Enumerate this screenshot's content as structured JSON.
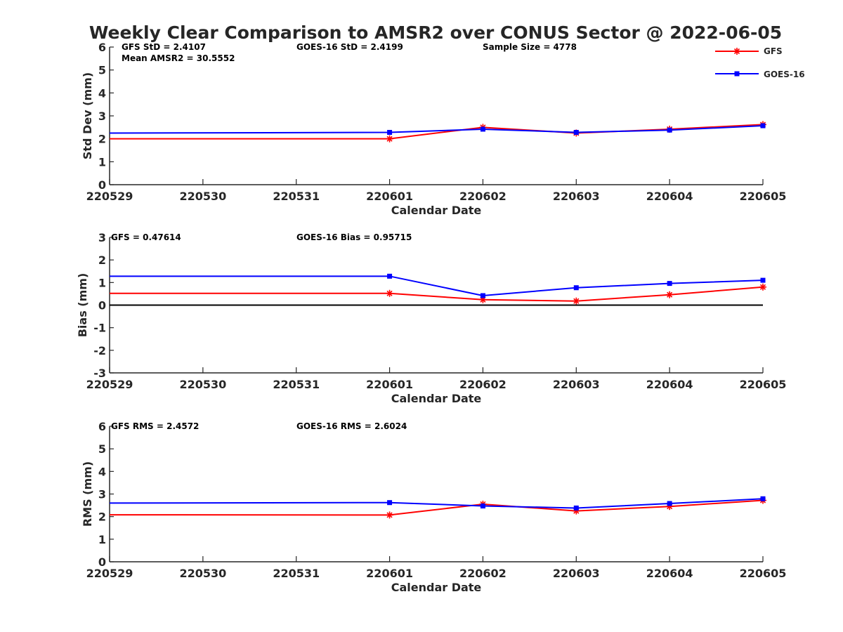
{
  "figure": {
    "title": "Weekly Clear Comparison to AMSR2 over CONUS Sector @ 2022-06-05"
  },
  "legend": {
    "placement": "top-right",
    "entries": [
      {
        "label": "GFS",
        "color": "#ff0000",
        "marker": "asterisk"
      },
      {
        "label": "GOES-16",
        "color": "#0000ff",
        "marker": "square"
      }
    ]
  },
  "chart_data": [
    {
      "type": "line",
      "ylabel": "Std Dev (mm)",
      "xlabel": "Calendar Date",
      "x_ticks": [
        "220529",
        "220530",
        "220531",
        "220601",
        "220602",
        "220603",
        "220604",
        "220605"
      ],
      "ylim": [
        0,
        6
      ],
      "y_ticks": [
        "0",
        "1",
        "2",
        "3",
        "4",
        "5",
        "6"
      ],
      "zero_line": false,
      "annotations": [
        "GFS StD = 2.4107",
        "GOES-16 StD = 2.4199",
        "Sample Size = 4778",
        "Mean AMSR2 = 30.5552"
      ],
      "series": [
        {
          "name": "GFS",
          "color": "#ff0000",
          "marker": "asterisk",
          "x": [
            "220529",
            "220601",
            "220602",
            "220603",
            "220604",
            "220605"
          ],
          "y": [
            2.0,
            2.0,
            2.5,
            2.25,
            2.42,
            2.62
          ]
        },
        {
          "name": "GOES-16",
          "color": "#0000ff",
          "marker": "square",
          "x": [
            "220529",
            "220601",
            "220602",
            "220603",
            "220604",
            "220605"
          ],
          "y": [
            2.25,
            2.28,
            2.42,
            2.28,
            2.38,
            2.57
          ]
        }
      ]
    },
    {
      "type": "line",
      "ylabel": "Bias (mm)",
      "xlabel": "Calendar Date",
      "x_ticks": [
        "220529",
        "220530",
        "220531",
        "220601",
        "220602",
        "220603",
        "220604",
        "220605"
      ],
      "ylim": [
        -3,
        3
      ],
      "y_ticks": [
        "-3",
        "-2",
        "-1",
        "0",
        "1",
        "2",
        "3"
      ],
      "zero_line": true,
      "annotations": [
        "GFS = 0.47614",
        "GOES-16 Bias  = 0.95715"
      ],
      "series": [
        {
          "name": "GFS",
          "color": "#ff0000",
          "marker": "asterisk",
          "x": [
            "220529",
            "220601",
            "220602",
            "220603",
            "220604",
            "220605"
          ],
          "y": [
            0.52,
            0.52,
            0.24,
            0.18,
            0.46,
            0.8
          ]
        },
        {
          "name": "GOES-16",
          "color": "#0000ff",
          "marker": "square",
          "x": [
            "220529",
            "220601",
            "220602",
            "220603",
            "220604",
            "220605"
          ],
          "y": [
            1.28,
            1.28,
            0.42,
            0.77,
            0.96,
            1.1
          ]
        }
      ]
    },
    {
      "type": "line",
      "ylabel": "RMS (mm)",
      "xlabel": "Calendar Date",
      "x_ticks": [
        "220529",
        "220530",
        "220531",
        "220601",
        "220602",
        "220603",
        "220604",
        "220605"
      ],
      "ylim": [
        0,
        6
      ],
      "y_ticks": [
        "0",
        "1",
        "2",
        "3",
        "4",
        "5",
        "6"
      ],
      "zero_line": false,
      "annotations": [
        "GFS RMS = 2.4572",
        "GOES-16 RMS = 2.6024"
      ],
      "series": [
        {
          "name": "GFS",
          "color": "#ff0000",
          "marker": "asterisk",
          "x": [
            "220529",
            "220601",
            "220602",
            "220603",
            "220604",
            "220605"
          ],
          "y": [
            2.08,
            2.07,
            2.55,
            2.25,
            2.45,
            2.72
          ]
        },
        {
          "name": "GOES-16",
          "color": "#0000ff",
          "marker": "square",
          "x": [
            "220529",
            "220601",
            "220602",
            "220603",
            "220604",
            "220605"
          ],
          "y": [
            2.6,
            2.62,
            2.47,
            2.38,
            2.58,
            2.79
          ]
        }
      ]
    }
  ]
}
